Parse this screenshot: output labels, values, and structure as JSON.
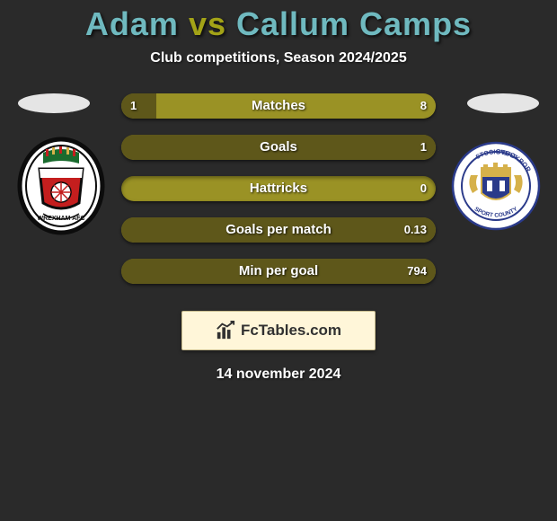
{
  "title": {
    "player1": "Adam",
    "vs": "vs",
    "player2": "Callum Camps",
    "color_player": "#6fb9bf",
    "color_vs": "#a3a317"
  },
  "subtitle": "Club competitions, Season 2024/2025",
  "bars": {
    "bg_color": "#9a9225",
    "left_color": "#5e571a",
    "right_color": "#5e571a",
    "text_color": "#ffffff",
    "rows": [
      {
        "label": "Matches",
        "left": "1",
        "right": "8",
        "left_pct": 11,
        "right_pct": 89
      },
      {
        "label": "Goals",
        "left": "",
        "right": "1",
        "left_pct": 0,
        "right_pct": 100
      },
      {
        "label": "Hattricks",
        "left": "",
        "right": "0",
        "left_pct": 0,
        "right_pct": 0,
        "neutral": true
      },
      {
        "label": "Goals per match",
        "left": "",
        "right": "0.13",
        "left_pct": 0,
        "right_pct": 100
      },
      {
        "label": "Min per goal",
        "left": "",
        "right": "794",
        "left_pct": 0,
        "right_pct": 100
      }
    ]
  },
  "brand": "FcTables.com",
  "date": "14 november 2024",
  "clubs": {
    "left": {
      "name": "Wrexham AFC",
      "colors": {
        "primary": "#c41e1e",
        "secondary": "#1a6b2e",
        "accent": "#ffffff",
        "black": "#0c0c0c"
      }
    },
    "right": {
      "name": "Stockport County",
      "colors": {
        "blue": "#2a3a8a",
        "gold": "#d6b14a",
        "white": "#ffffff"
      }
    }
  }
}
